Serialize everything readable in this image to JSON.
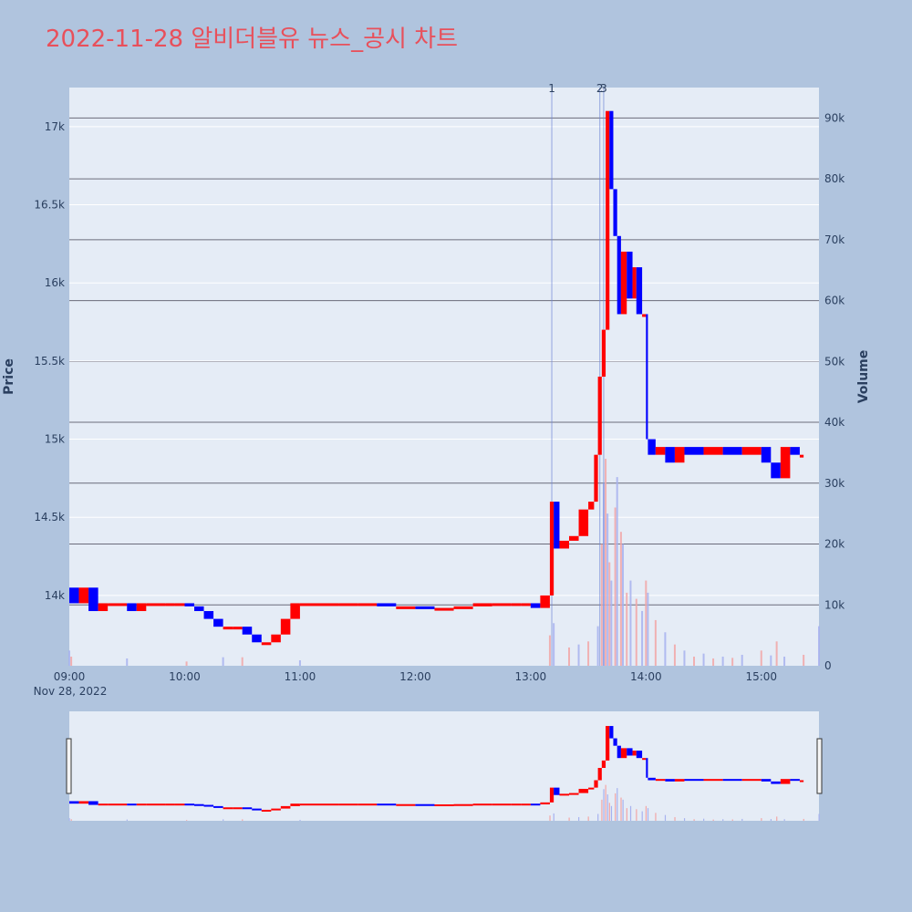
{
  "title": "2022-11-28 알비더블유 뉴스_공시 차트",
  "colors": {
    "background": "#b0c4de",
    "plot": "#e5ecf6",
    "up": "#ff0000",
    "down": "#0000ff",
    "title": "#e8505b",
    "marker": "#6f86d6"
  },
  "chart_data": {
    "type": "candlestick",
    "xlabel": "",
    "ylabel": "Price",
    "y2label": "Volume",
    "date_label": "Nov 28, 2022",
    "x_ticks": [
      "09:00",
      "10:00",
      "11:00",
      "12:00",
      "13:00",
      "14:00",
      "15:00"
    ],
    "y_ticks": [
      "14k",
      "14.5k",
      "15k",
      "15.5k",
      "16k",
      "16.5k",
      "17k"
    ],
    "y_tick_values": [
      14000,
      14500,
      15000,
      15500,
      16000,
      16500,
      17000
    ],
    "y2_ticks": [
      "0",
      "10k",
      "20k",
      "30k",
      "40k",
      "50k",
      "60k",
      "70k",
      "80k",
      "90k"
    ],
    "y2_tick_values": [
      0,
      10000,
      20000,
      30000,
      40000,
      50000,
      60000,
      70000,
      80000,
      90000
    ],
    "ylim": [
      13550,
      17250
    ],
    "y2lim": [
      0,
      95000
    ],
    "xlim": [
      "09:00",
      "15:30"
    ],
    "news_markers": [
      {
        "label": "1",
        "time": "13:11"
      },
      {
        "label": "2",
        "time": "13:36"
      },
      {
        "label": "3",
        "time": "13:38"
      }
    ],
    "price_path": [
      [
        "09:00",
        14050
      ],
      [
        "09:05",
        13950
      ],
      [
        "09:10",
        14050
      ],
      [
        "09:15",
        13900
      ],
      [
        "09:20",
        13950
      ],
      [
        "09:30",
        13950
      ],
      [
        "09:35",
        13900
      ],
      [
        "09:40",
        13950
      ],
      [
        "09:50",
        13950
      ],
      [
        "09:55",
        13950
      ],
      [
        "10:00",
        13950
      ],
      [
        "10:05",
        13930
      ],
      [
        "10:10",
        13900
      ],
      [
        "10:15",
        13850
      ],
      [
        "10:20",
        13800
      ],
      [
        "10:25",
        13800
      ],
      [
        "10:30",
        13800
      ],
      [
        "10:35",
        13750
      ],
      [
        "10:40",
        13700
      ],
      [
        "10:45",
        13700
      ],
      [
        "10:50",
        13750
      ],
      [
        "10:55",
        13850
      ],
      [
        "11:00",
        13950
      ],
      [
        "11:10",
        13950
      ],
      [
        "11:20",
        13950
      ],
      [
        "11:30",
        13950
      ],
      [
        "11:40",
        13950
      ],
      [
        "11:50",
        13930
      ],
      [
        "12:00",
        13930
      ],
      [
        "12:10",
        13920
      ],
      [
        "12:20",
        13920
      ],
      [
        "12:30",
        13930
      ],
      [
        "12:40",
        13950
      ],
      [
        "12:50",
        13950
      ],
      [
        "12:55",
        13950
      ],
      [
        "13:00",
        13950
      ],
      [
        "13:05",
        13920
      ],
      [
        "13:10",
        14000
      ],
      [
        "13:12",
        14600
      ],
      [
        "13:15",
        14300
      ],
      [
        "13:20",
        14350
      ],
      [
        "13:25",
        14380
      ],
      [
        "13:30",
        14550
      ],
      [
        "13:33",
        14600
      ],
      [
        "13:35",
        14900
      ],
      [
        "13:37",
        15400
      ],
      [
        "13:39",
        15700
      ],
      [
        "13:41",
        17100
      ],
      [
        "13:43",
        16600
      ],
      [
        "13:45",
        16300
      ],
      [
        "13:47",
        15800
      ],
      [
        "13:50",
        16200
      ],
      [
        "13:53",
        15900
      ],
      [
        "13:55",
        16100
      ],
      [
        "13:58",
        15800
      ],
      [
        "14:00",
        15800
      ],
      [
        "14:01",
        15000
      ],
      [
        "14:05",
        14900
      ],
      [
        "14:10",
        14950
      ],
      [
        "14:15",
        14850
      ],
      [
        "14:20",
        14950
      ],
      [
        "14:30",
        14900
      ],
      [
        "14:40",
        14950
      ],
      [
        "14:50",
        14900
      ],
      [
        "15:00",
        14950
      ],
      [
        "15:05",
        14850
      ],
      [
        "15:10",
        14750
      ],
      [
        "15:15",
        14950
      ],
      [
        "15:20",
        14900
      ],
      [
        "15:22",
        14900
      ]
    ],
    "volume_bars": [
      [
        "09:00",
        2500
      ],
      [
        "09:01",
        1500
      ],
      [
        "09:30",
        1200
      ],
      [
        "10:01",
        700
      ],
      [
        "10:20",
        1400
      ],
      [
        "10:30",
        1400
      ],
      [
        "11:00",
        900
      ],
      [
        "13:10",
        5000
      ],
      [
        "13:12",
        7000
      ],
      [
        "13:20",
        3000
      ],
      [
        "13:25",
        3500
      ],
      [
        "13:30",
        4000
      ],
      [
        "13:35",
        6500
      ],
      [
        "13:37",
        20000
      ],
      [
        "13:38",
        30000
      ],
      [
        "13:39",
        34000
      ],
      [
        "13:40",
        25000
      ],
      [
        "13:41",
        17000
      ],
      [
        "13:42",
        14000
      ],
      [
        "13:44",
        26000
      ],
      [
        "13:45",
        31000
      ],
      [
        "13:47",
        22000
      ],
      [
        "13:48",
        20000
      ],
      [
        "13:50",
        12000
      ],
      [
        "13:52",
        14000
      ],
      [
        "13:55",
        11000
      ],
      [
        "13:58",
        9000
      ],
      [
        "14:00",
        14000
      ],
      [
        "14:01",
        12000
      ],
      [
        "14:05",
        7500
      ],
      [
        "14:10",
        5500
      ],
      [
        "14:15",
        3500
      ],
      [
        "14:20",
        2500
      ],
      [
        "14:25",
        1500
      ],
      [
        "14:30",
        2000
      ],
      [
        "14:35",
        1200
      ],
      [
        "14:40",
        1500
      ],
      [
        "14:45",
        1300
      ],
      [
        "14:50",
        1800
      ],
      [
        "15:00",
        2500
      ],
      [
        "15:05",
        1700
      ],
      [
        "15:08",
        4000
      ],
      [
        "15:12",
        1500
      ],
      [
        "15:22",
        1800
      ],
      [
        "15:30",
        6500
      ]
    ]
  }
}
